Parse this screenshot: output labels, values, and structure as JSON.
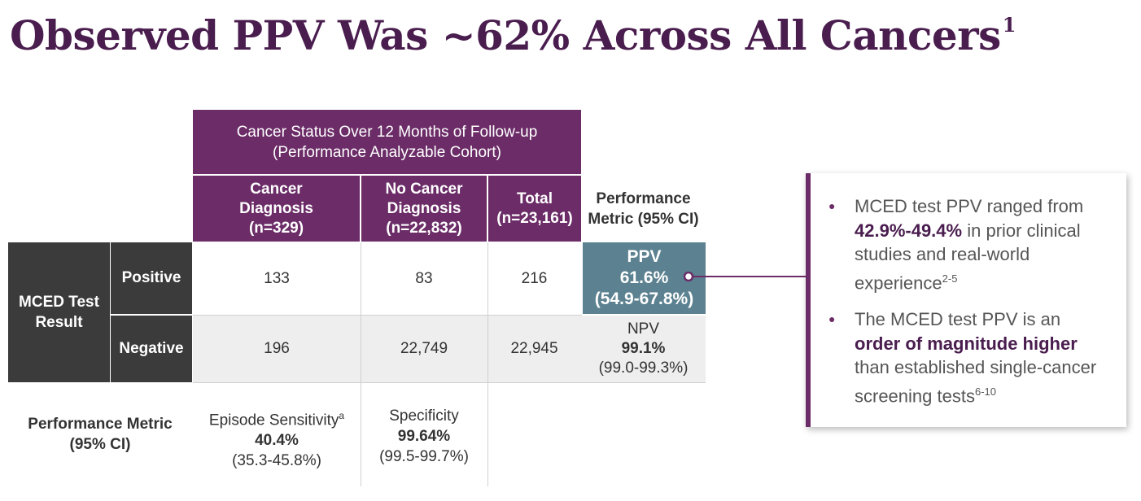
{
  "title": {
    "text": "Observed PPV Was ~62% Across All Cancers",
    "superscript": "1"
  },
  "table": {
    "header_top": {
      "line1": "Cancer Status Over 12 Months of Follow-up",
      "line2": "(Performance Analyzable Cohort)"
    },
    "columns": {
      "cancer": {
        "line1": "Cancer",
        "line2": "Diagnosis",
        "line3": "(n=329)"
      },
      "no_cancer": {
        "line1": "No Cancer",
        "line2": "Diagnosis",
        "line3": "(n=22,832)"
      },
      "total": {
        "line1": "Total",
        "line2": "(n=23,161)"
      },
      "performance": {
        "line1": "Performance",
        "line2": "Metric (95% CI)"
      }
    },
    "row_group_label": {
      "line1": "MCED Test",
      "line2": "Result"
    },
    "rows": {
      "positive": {
        "label": "Positive",
        "cancer": "133",
        "no_cancer": "83",
        "total": "216",
        "metric_name": "PPV",
        "metric_value": "61.6%",
        "metric_ci": "(54.9-67.8%)"
      },
      "negative": {
        "label": "Negative",
        "cancer": "196",
        "no_cancer": "22,749",
        "total": "22,945",
        "metric_name": "NPV",
        "metric_value": "99.1%",
        "metric_ci": "(99.0-99.3%)"
      }
    },
    "bottom": {
      "label": {
        "line1": "Performance Metric",
        "line2": "(95% CI)"
      },
      "sensitivity": {
        "name": "Episode Sensitivity",
        "superscript": "a",
        "value": "40.4%",
        "ci": "(35.3-45.8%)"
      },
      "specificity": {
        "name": "Specificity",
        "value": "99.64%",
        "ci": "(99.5-99.7%)"
      }
    }
  },
  "callout": {
    "bullet1": {
      "pre": "MCED test PPV ranged from",
      "bold": "42.9%-49.4%",
      "post": "in prior clinical studies and real-world experience",
      "superscript": "2-5"
    },
    "bullet2": {
      "pre": "The MCED test PPV is an",
      "bold": "order of magnitude higher",
      "post": "than established single-cancer screening tests",
      "superscript": "6-10"
    }
  },
  "colors": {
    "purple": "#6b2c67",
    "dark": "#3b3b3b",
    "teal": "#5c8190",
    "grey": "#eeeeee",
    "title": "#4a1d4f"
  }
}
